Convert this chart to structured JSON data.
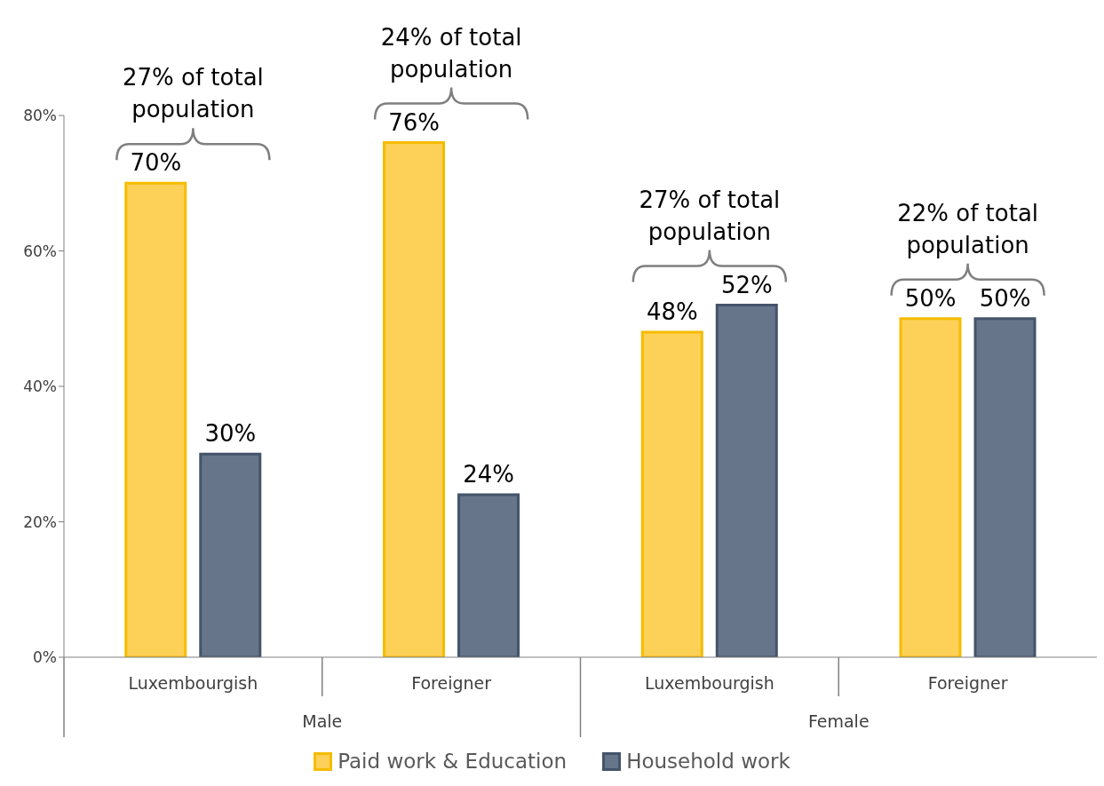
{
  "chart_data": {
    "type": "bar",
    "categories": [
      "Luxembourgish",
      "Foreigner",
      "Luxembourgish",
      "Foreigner"
    ],
    "series": [
      {
        "name": "Paid work & Education",
        "color": "#fdd058",
        "values": [
          70,
          76,
          48,
          50
        ],
        "value_labels": [
          "70%",
          "76%",
          "48%",
          "50%"
        ]
      },
      {
        "name": "Household work",
        "color": "#67758b",
        "values": [
          30,
          24,
          52,
          50
        ],
        "value_labels": [
          "30%",
          "24%",
          "52%",
          "50%"
        ]
      }
    ],
    "ylim": [
      0,
      80
    ],
    "yticks": [
      {
        "value": 0,
        "label": "0%"
      },
      {
        "value": 20,
        "label": "20%"
      },
      {
        "value": 40,
        "label": "40%"
      },
      {
        "value": 60,
        "label": "60%"
      },
      {
        "value": 80,
        "label": "80%"
      }
    ],
    "annotations": [
      "27% of total population",
      "24% of total population",
      "27% of total population",
      "22% of total population",
      "Male",
      "Female"
    ],
    "grid": false,
    "legend": "bottom"
  }
}
